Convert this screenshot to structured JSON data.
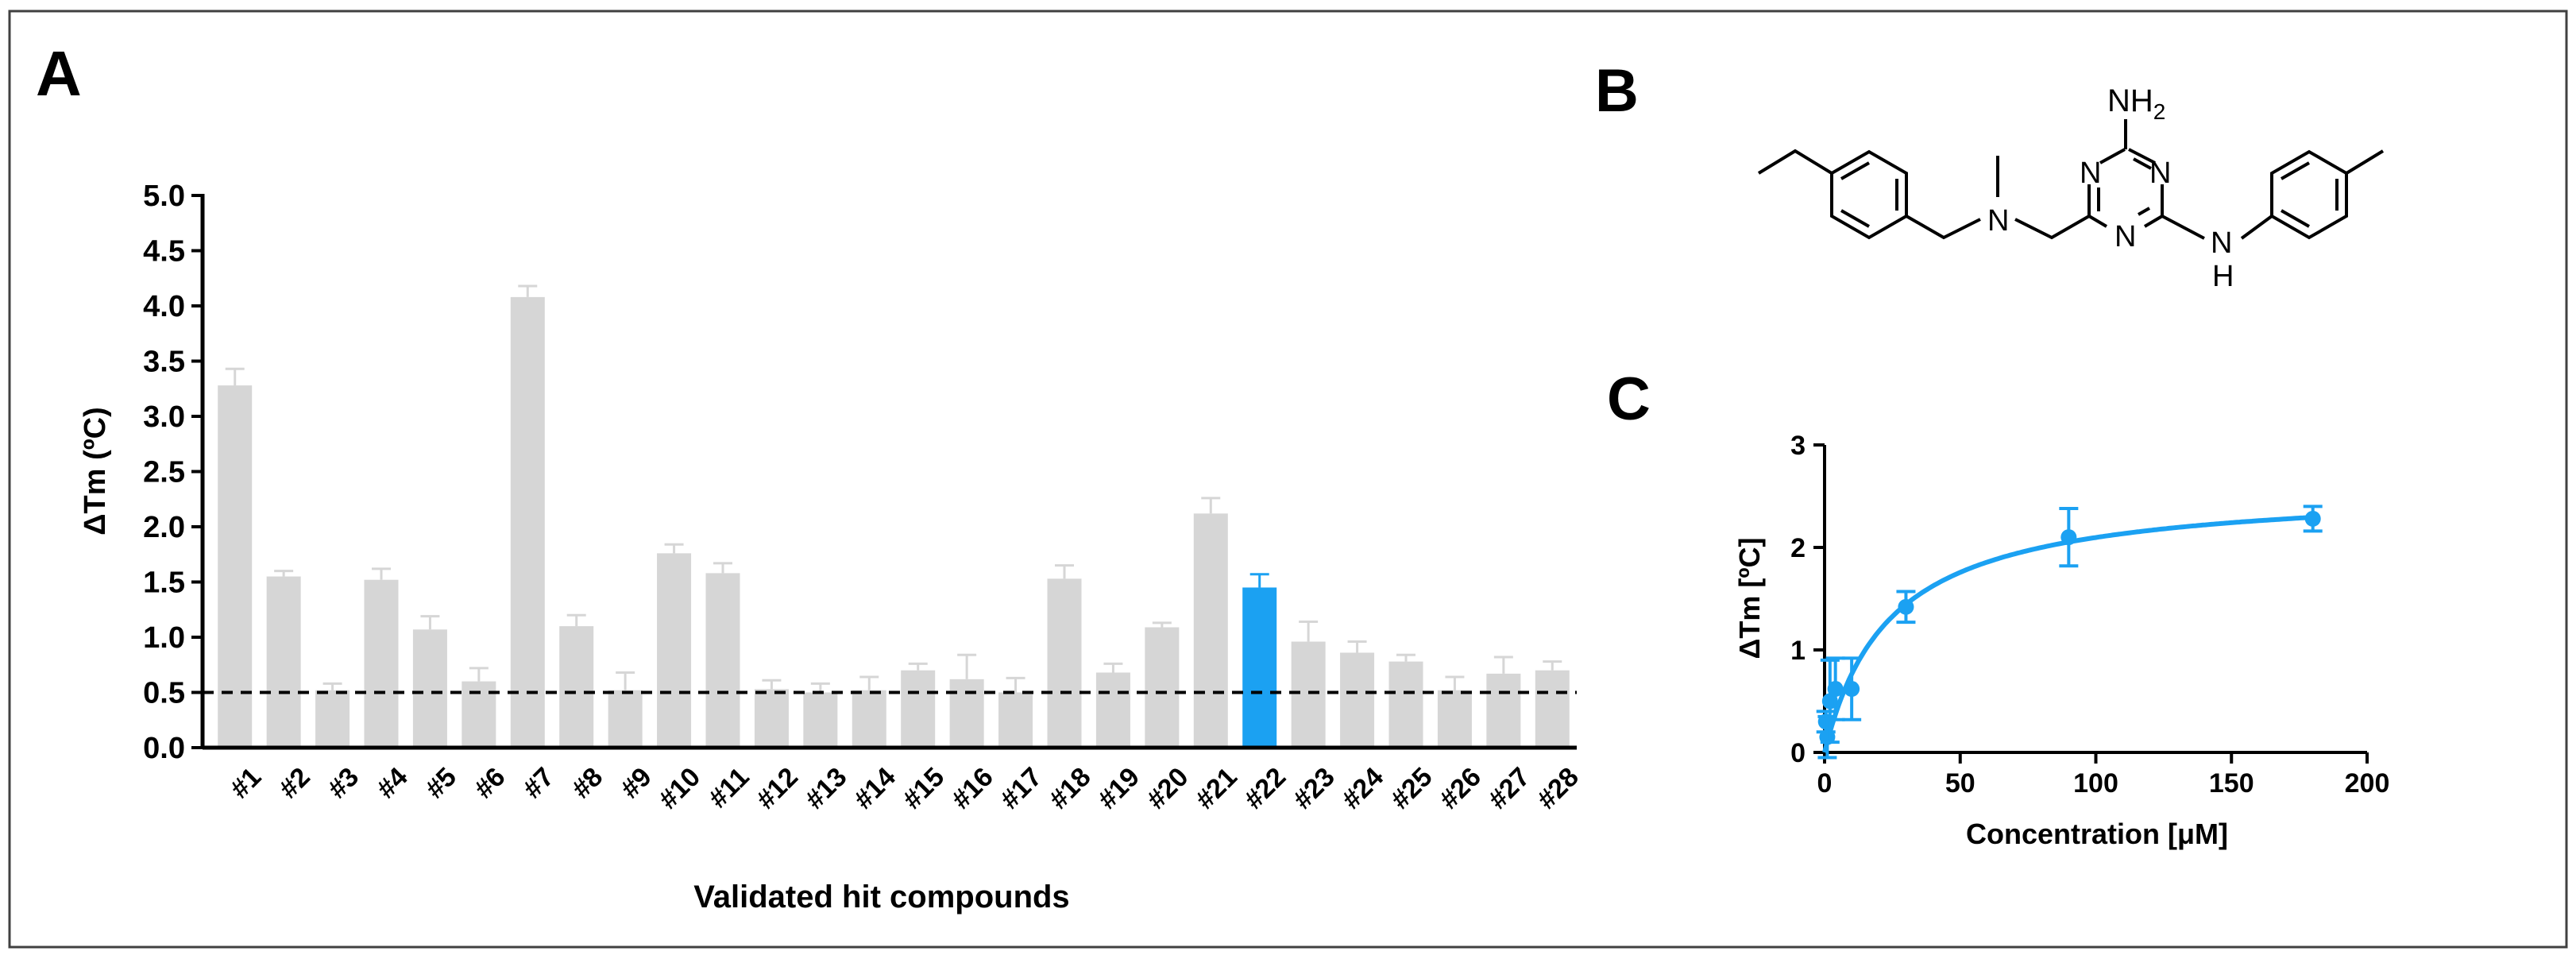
{
  "panels": {
    "a": "A",
    "b": "B",
    "c": "C"
  },
  "colors": {
    "bar": "#d6d6d6",
    "highlight": "#1ba1f2",
    "axis": "#000000",
    "border": "#404040"
  },
  "chart_data": [
    {
      "type": "bar",
      "title": "",
      "xlabel": "Validated hit compounds",
      "ylabel": "ΔTm (ºC)",
      "ylim": [
        0,
        5
      ],
      "yticks": [
        "0.0",
        "0.5",
        "1.0",
        "1.5",
        "2.0",
        "2.5",
        "3.0",
        "3.5",
        "4.0",
        "4.5",
        "5.0"
      ],
      "categories": [
        "#1",
        "#2",
        "#3",
        "#4",
        "#5",
        "#6",
        "#7",
        "#8",
        "#9",
        "#10",
        "#11",
        "#12",
        "#13",
        "#14",
        "#15",
        "#16",
        "#17",
        "#18",
        "#19",
        "#20",
        "#21",
        "#22",
        "#23",
        "#24",
        "#25",
        "#26",
        "#27",
        "#28"
      ],
      "values": [
        3.28,
        1.55,
        0.52,
        1.52,
        1.07,
        0.6,
        4.08,
        1.1,
        0.52,
        1.76,
        1.58,
        0.53,
        0.5,
        0.52,
        0.7,
        0.62,
        0.5,
        1.53,
        0.68,
        1.09,
        2.12,
        1.45,
        0.96,
        0.86,
        0.78,
        0.52,
        0.67,
        0.7
      ],
      "errors": [
        0.15,
        0.05,
        0.06,
        0.1,
        0.12,
        0.12,
        0.1,
        0.1,
        0.16,
        0.08,
        0.09,
        0.08,
        0.08,
        0.12,
        0.06,
        0.22,
        0.13,
        0.12,
        0.08,
        0.04,
        0.14,
        0.12,
        0.18,
        0.1,
        0.06,
        0.12,
        0.15,
        0.08
      ],
      "highlight_index": 21,
      "threshold": 0.5,
      "grid": false
    },
    {
      "type": "scatter",
      "title": "",
      "xlabel": "Concentration [μM]",
      "ylabel": "ΔTm [ºC]",
      "xlim": [
        0,
        200
      ],
      "ylim": [
        0,
        3
      ],
      "xticks": [
        "0",
        "50",
        "100",
        "150",
        "200"
      ],
      "yticks": [
        "0",
        "1",
        "2",
        "3"
      ],
      "series": [
        {
          "x": [
            0.5,
            1,
            2,
            4,
            10,
            30,
            90,
            180
          ],
          "y": [
            0.3,
            0.15,
            0.5,
            0.62,
            0.62,
            1.42,
            2.1,
            2.28
          ],
          "errors": [
            0.1,
            0.2,
            0.4,
            0.3,
            0.3,
            0.15,
            0.28,
            0.12
          ],
          "fit": {
            "model": "saturation",
            "bmax": 2.6,
            "kd": 24
          }
        }
      ],
      "grid": false
    }
  ],
  "structure": {
    "labels": [
      "NH2",
      "N",
      "N",
      "N",
      "N",
      "NH"
    ],
    "amine_top": "NH",
    "amine_sub": "2",
    "nh_n": "N",
    "nh_h": "H",
    "methylamine_n": "N",
    "ring_n1": "N",
    "ring_n2": "N",
    "ring_n3": "N"
  }
}
